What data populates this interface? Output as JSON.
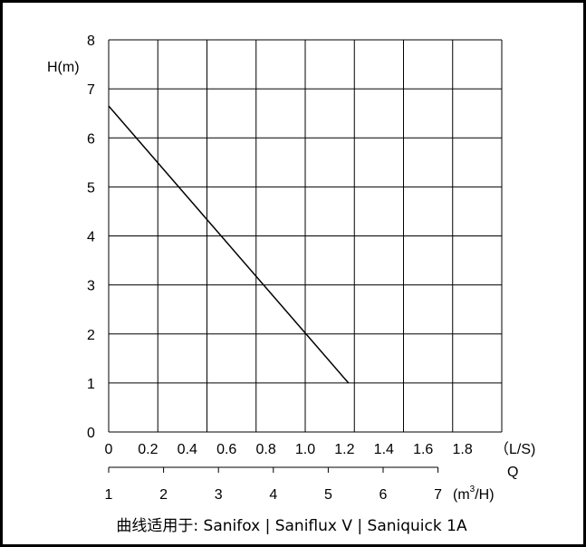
{
  "chart_data": {
    "type": "line",
    "ylabel": "H(m)",
    "ylim": [
      0,
      8
    ],
    "yticks": [
      "0",
      "1",
      "2",
      "3",
      "4",
      "5",
      "6",
      "7",
      "8"
    ],
    "xlim": [
      0,
      2.0
    ],
    "xticks_ls": [
      "0",
      "0.2",
      "0.4",
      "0.6",
      "0.8",
      "1.0",
      "1.2",
      "1.4",
      "1.6",
      "1.8"
    ],
    "x_unit_ls": "（L/S)",
    "xlabel": "Q",
    "secondary_x": {
      "ticks": [
        "1",
        "2",
        "3",
        "4",
        "5",
        "6",
        "7"
      ],
      "values": [
        1,
        2,
        3,
        4,
        5,
        6,
        7
      ],
      "unit_main": "(m",
      "unit_sup": "3",
      "unit_tail": "/H)"
    },
    "grid": true,
    "series": [
      {
        "values_x": [
          0,
          1.22
        ],
        "values_y": [
          6.65,
          1.0
        ]
      }
    ],
    "footer": "曲线适用于:  Sanifox | Saniflux V  |  Saniquick 1A"
  }
}
